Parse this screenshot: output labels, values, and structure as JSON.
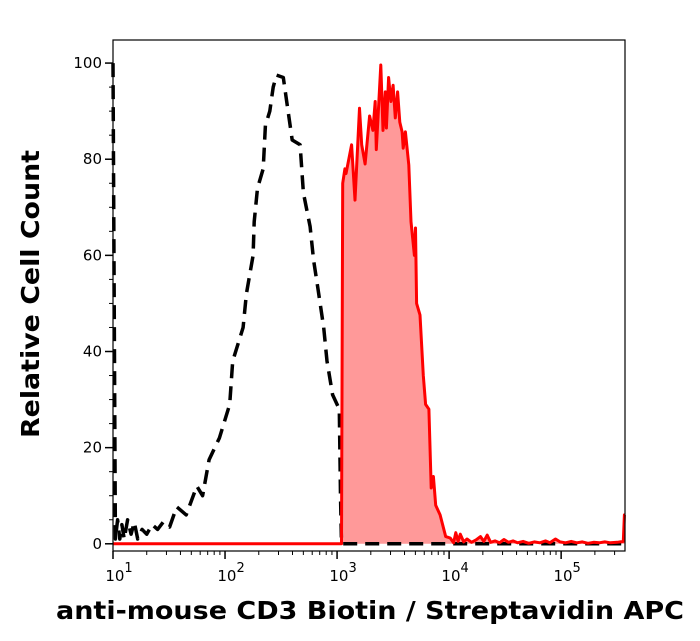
{
  "chart_data": {
    "type": "area",
    "title": "",
    "xlabel": "anti-mouse CD3 Biotin / Streptavidin APC",
    "ylabel": "Relative Cell Count",
    "x_scale": "log",
    "xlim": [
      10,
      371500
    ],
    "ylim": [
      -1.5,
      104.8
    ],
    "grid": false,
    "x_ticks": {
      "base": "10",
      "exponents": [
        "1",
        "2",
        "3",
        "4",
        "5"
      ],
      "values": [
        10,
        100,
        1000,
        10000,
        100000
      ]
    },
    "y_ticks": [
      0,
      20,
      40,
      60,
      80,
      100
    ],
    "series": [
      {
        "style": "dashed-line",
        "color": "#000000",
        "points": [
          [
            10,
            100
          ],
          [
            10.5,
            1
          ],
          [
            11,
            5
          ],
          [
            11.5,
            1
          ],
          [
            12,
            4
          ],
          [
            12.6,
            1
          ],
          [
            13.5,
            5
          ],
          [
            14.5,
            2
          ],
          [
            15.5,
            4.5
          ],
          [
            16.6,
            1
          ],
          [
            18.2,
            3
          ],
          [
            20,
            2
          ],
          [
            22.4,
            4
          ],
          [
            25,
            3
          ],
          [
            28,
            4.5
          ],
          [
            32,
            3.5
          ],
          [
            37,
            7.7
          ],
          [
            45,
            6
          ],
          [
            56,
            12
          ],
          [
            63,
            10
          ],
          [
            72,
            17.5
          ],
          [
            89,
            22
          ],
          [
            110,
            29
          ],
          [
            117,
            38
          ],
          [
            145,
            45
          ],
          [
            155,
            52
          ],
          [
            178,
            60
          ],
          [
            182,
            67
          ],
          [
            195,
            74
          ],
          [
            219,
            78
          ],
          [
            229,
            87
          ],
          [
            251,
            90
          ],
          [
            269,
            95
          ],
          [
            288,
            97.5
          ],
          [
            331,
            97
          ],
          [
            355,
            92
          ],
          [
            398,
            84
          ],
          [
            468,
            83
          ],
          [
            501,
            73
          ],
          [
            575,
            66
          ],
          [
            617,
            59
          ],
          [
            676,
            53
          ],
          [
            759,
            45
          ],
          [
            813,
            38
          ],
          [
            912,
            31
          ],
          [
            1047,
            28
          ],
          [
            1072,
            10
          ],
          [
            1096,
            0
          ],
          [
            10000,
            0
          ],
          [
            371500,
            0
          ]
        ]
      },
      {
        "style": "filled",
        "color": "#ff0000",
        "fill": "#ff9999",
        "points": [
          [
            10,
            0
          ],
          [
            1096,
            0
          ],
          [
            1122,
            75
          ],
          [
            1175,
            78
          ],
          [
            1202,
            77
          ],
          [
            1349,
            83
          ],
          [
            1445,
            71.5
          ],
          [
            1585,
            90.6
          ],
          [
            1660,
            83
          ],
          [
            1778,
            79
          ],
          [
            1950,
            89
          ],
          [
            2089,
            86
          ],
          [
            2188,
            92
          ],
          [
            2239,
            82
          ],
          [
            2455,
            99.6
          ],
          [
            2570,
            86
          ],
          [
            2692,
            94
          ],
          [
            2754,
            86.5
          ],
          [
            2884,
            97
          ],
          [
            3020,
            92
          ],
          [
            3162,
            95.4
          ],
          [
            3311,
            88.6
          ],
          [
            3467,
            94
          ],
          [
            3631,
            87.7
          ],
          [
            3802,
            85.7
          ],
          [
            3890,
            82.3
          ],
          [
            4074,
            85.7
          ],
          [
            4365,
            78.8
          ],
          [
            4571,
            67
          ],
          [
            4898,
            60
          ],
          [
            5012,
            65.7
          ],
          [
            5129,
            50
          ],
          [
            5495,
            47.6
          ],
          [
            5888,
            35
          ],
          [
            6166,
            29
          ],
          [
            6607,
            28
          ],
          [
            6918,
            11.6
          ],
          [
            7244,
            14
          ],
          [
            7586,
            8
          ],
          [
            8318,
            6
          ],
          [
            9333,
            1.5
          ],
          [
            10233,
            1.2
          ],
          [
            10965,
            0.2
          ],
          [
            11482,
            2.3
          ],
          [
            12023,
            0.5
          ],
          [
            12589,
            2
          ],
          [
            13490,
            0.4
          ],
          [
            14454,
            1
          ],
          [
            15849,
            0.3
          ],
          [
            17378,
            0.8
          ],
          [
            19055,
            1.5
          ],
          [
            20417,
            0.5
          ],
          [
            21878,
            1.8
          ],
          [
            23442,
            0.3
          ],
          [
            25704,
            0.6
          ],
          [
            28184,
            0.2
          ],
          [
            30903,
            0.9
          ],
          [
            33884,
            0.3
          ],
          [
            37154,
            0.6
          ],
          [
            40738,
            0.2
          ],
          [
            45709,
            0.5
          ],
          [
            51286,
            0.1
          ],
          [
            57544,
            0.4
          ],
          [
            64565,
            0.2
          ],
          [
            72444,
            0.6
          ],
          [
            79433,
            0.2
          ],
          [
            89125,
            1
          ],
          [
            97724,
            0.4
          ],
          [
            109648,
            0.2
          ],
          [
            123027,
            0.5
          ],
          [
            138038,
            0.2
          ],
          [
            154882,
            0.4
          ],
          [
            173780,
            0.1
          ],
          [
            194984,
            0.3
          ],
          [
            218776,
            0.2
          ],
          [
            245471,
            0.4
          ],
          [
            275423,
            0.2
          ],
          [
            316228,
            0.3
          ],
          [
            359000,
            0.5
          ],
          [
            367000,
            6
          ],
          [
            371500,
            6
          ]
        ]
      }
    ]
  }
}
